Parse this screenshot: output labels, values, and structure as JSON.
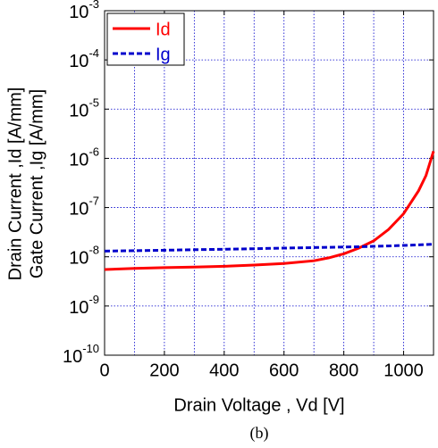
{
  "chart_data": {
    "type": "line",
    "x_label": "Drain Voltage , Vd [V]",
    "y_label": [
      "Drain Current ,Id  [A/mm]",
      "Gate Current ,Ig [A/mm]"
    ],
    "caption": "(b)",
    "log_y": true,
    "grid": true,
    "grid_color": "#0000cc",
    "legend": "upper left",
    "xlim": [
      0,
      1100
    ],
    "xticks": [
      0,
      200,
      400,
      600,
      800,
      1000
    ],
    "xgrid": [
      0,
      100,
      200,
      300,
      400,
      500,
      600,
      700,
      800,
      900,
      1000,
      1100
    ],
    "ylim": [
      1e-10,
      0.001
    ],
    "yticks": [
      {
        "value": 1e-10,
        "label": "10-10"
      },
      {
        "value": 1e-09,
        "label": "10-9"
      },
      {
        "value": 1e-08,
        "label": "10-8"
      },
      {
        "value": 1e-07,
        "label": "10-7"
      },
      {
        "value": 1e-06,
        "label": "10-6"
      },
      {
        "value": 1e-05,
        "label": "10-5"
      },
      {
        "value": 0.0001,
        "label": "10-4"
      },
      {
        "value": 0.001,
        "label": "10-3"
      }
    ],
    "x": [
      0,
      100,
      200,
      300,
      400,
      500,
      600,
      700,
      750,
      800,
      850,
      900,
      950,
      1000,
      1050,
      1075,
      1100
    ],
    "series": [
      {
        "name": "Id",
        "color": "#ff0000",
        "dash": "solid",
        "values": [
          5.5e-09,
          5.8e-09,
          6e-09,
          6.2e-09,
          6.4e-09,
          6.8e-09,
          7.3e-09,
          8.3e-09,
          9.5e-09,
          1.15e-08,
          1.5e-08,
          2.1e-08,
          3.6e-08,
          7.5e-08,
          2.2e-07,
          4.5e-07,
          1.4e-06
        ]
      },
      {
        "name": "Ig",
        "color": "#0000cc",
        "dash": "dashed",
        "values": [
          1.3e-08,
          1.33e-08,
          1.36e-08,
          1.39e-08,
          1.42e-08,
          1.46e-08,
          1.5e-08,
          1.54e-08,
          1.56e-08,
          1.58e-08,
          1.6e-08,
          1.63e-08,
          1.66e-08,
          1.7e-08,
          1.74e-08,
          1.77e-08,
          1.8e-08
        ]
      }
    ]
  }
}
